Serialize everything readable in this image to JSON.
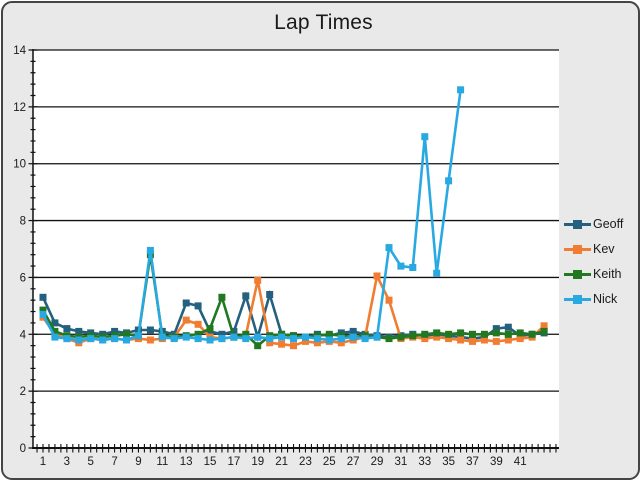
{
  "window": {
    "background": "#e9e9e9",
    "border_color": "#454545"
  },
  "chart_data": {
    "type": "line",
    "title": "Lap Times",
    "xlabel": "",
    "ylabel": "",
    "ylim": [
      0,
      14
    ],
    "y_ticks": [
      0,
      2,
      4,
      6,
      8,
      10,
      12,
      14
    ],
    "y_minor_tick_step": 0.4,
    "x_tick_labels": [
      1,
      3,
      5,
      7,
      9,
      11,
      13,
      15,
      17,
      19,
      21,
      23,
      25,
      27,
      29,
      31,
      33,
      35,
      37,
      39,
      41
    ],
    "x_minor_tick_step": 0.5,
    "x_axis_end": 44,
    "grid": "horizontal-major-on",
    "legend_position": "right",
    "plot_bg": "#ffffff",
    "axis_color": "#111111",
    "x_start": 1,
    "series": [
      {
        "name": "Geoff",
        "color": "#24617f",
        "values": [
          5.3,
          4.4,
          4.2,
          4.1,
          4.05,
          4.0,
          4.1,
          4.05,
          4.15,
          4.15,
          4.1,
          4.0,
          5.1,
          5.0,
          4.1,
          4.0,
          4.1,
          5.35,
          3.9,
          5.4,
          4.0,
          3.95,
          3.9,
          4.0,
          3.95,
          4.05,
          4.1,
          4.0,
          3.95,
          3.9,
          3.95,
          4.0,
          3.95,
          4.0,
          3.95,
          3.9,
          3.85,
          3.9,
          4.2,
          4.25,
          3.95,
          4.0,
          4.05
        ]
      },
      {
        "name": "Kev",
        "color": "#f07d31",
        "values": [
          4.6,
          4.0,
          3.85,
          3.7,
          3.85,
          3.8,
          3.85,
          3.8,
          3.85,
          3.8,
          3.85,
          3.9,
          4.5,
          4.35,
          3.9,
          3.85,
          3.9,
          3.95,
          5.9,
          3.7,
          3.65,
          3.6,
          3.75,
          3.7,
          3.75,
          3.7,
          3.8,
          3.9,
          6.05,
          5.2,
          3.85,
          3.9,
          3.85,
          3.9,
          3.85,
          3.8,
          3.75,
          3.8,
          3.75,
          3.8,
          3.85,
          3.9,
          4.3
        ]
      },
      {
        "name": "Keith",
        "color": "#217821",
        "values": [
          4.85,
          4.1,
          3.95,
          3.9,
          3.95,
          3.9,
          3.95,
          4.0,
          3.95,
          6.8,
          3.95,
          3.9,
          3.95,
          4.0,
          4.2,
          5.3,
          3.9,
          4.0,
          3.6,
          3.95,
          4.0,
          3.95,
          3.9,
          3.95,
          4.0,
          3.95,
          3.9,
          3.95,
          3.9,
          3.85,
          3.9,
          3.95,
          4.0,
          4.05,
          4.0,
          4.05,
          4.0,
          4.0,
          4.05,
          4.0,
          4.05,
          4.0,
          4.1
        ]
      },
      {
        "name": "Nick",
        "color": "#29a9e1",
        "values": [
          4.7,
          3.9,
          3.85,
          3.8,
          3.85,
          3.8,
          3.85,
          3.8,
          3.95,
          6.95,
          3.9,
          3.85,
          3.9,
          3.85,
          3.8,
          3.85,
          3.9,
          3.85,
          3.9,
          3.85,
          3.9,
          3.85,
          3.9,
          3.85,
          3.8,
          3.85,
          3.9,
          3.85,
          3.9,
          7.05,
          6.4,
          6.35,
          10.95,
          6.15,
          9.4,
          12.6
        ]
      }
    ]
  }
}
